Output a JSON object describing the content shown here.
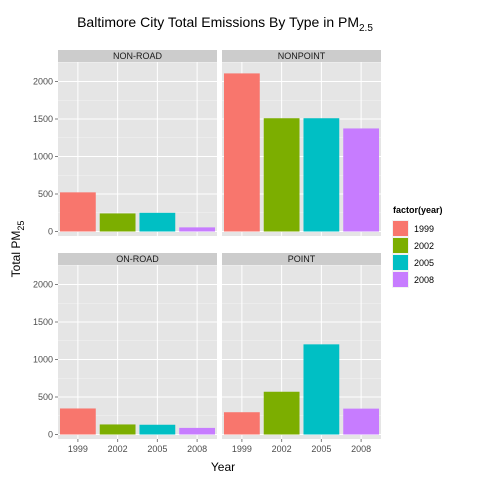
{
  "chart_data": {
    "type": "bar",
    "title": {
      "main": "Baltimore City Total Emissions By Type in PM",
      "sub": "2.5"
    },
    "xlabel": "Year",
    "ylabel": {
      "main": "Total PM",
      "sub": "25"
    },
    "categories": [
      "1999",
      "2002",
      "2005",
      "2008"
    ],
    "ylim": [
      -60,
      2260
    ],
    "yticks": [
      0,
      500,
      1000,
      1500,
      2000
    ],
    "yticks_labels": [
      "0",
      "500",
      "1000",
      "1500",
      "2000"
    ],
    "facet_layout": "2x2",
    "panels": [
      {
        "name": "NON-ROAD",
        "values": [
          522,
          241,
          249,
          55
        ]
      },
      {
        "name": "NONPOINT",
        "values": [
          2108,
          1510,
          1510,
          1374
        ]
      },
      {
        "name": "ON-ROAD",
        "values": [
          347,
          134,
          130,
          88
        ]
      },
      {
        "name": "POINT",
        "values": [
          297,
          570,
          1202,
          345
        ]
      }
    ],
    "legend": {
      "title": "factor(year)",
      "entries": [
        "1999",
        "2002",
        "2005",
        "2008"
      ],
      "position": "right"
    },
    "colors": [
      "#F8766D",
      "#7CAE00",
      "#00BFC4",
      "#C77CFF"
    ],
    "panel_background": "#E5E5E5",
    "strip_background": "#CCCCCC",
    "grid": true
  }
}
